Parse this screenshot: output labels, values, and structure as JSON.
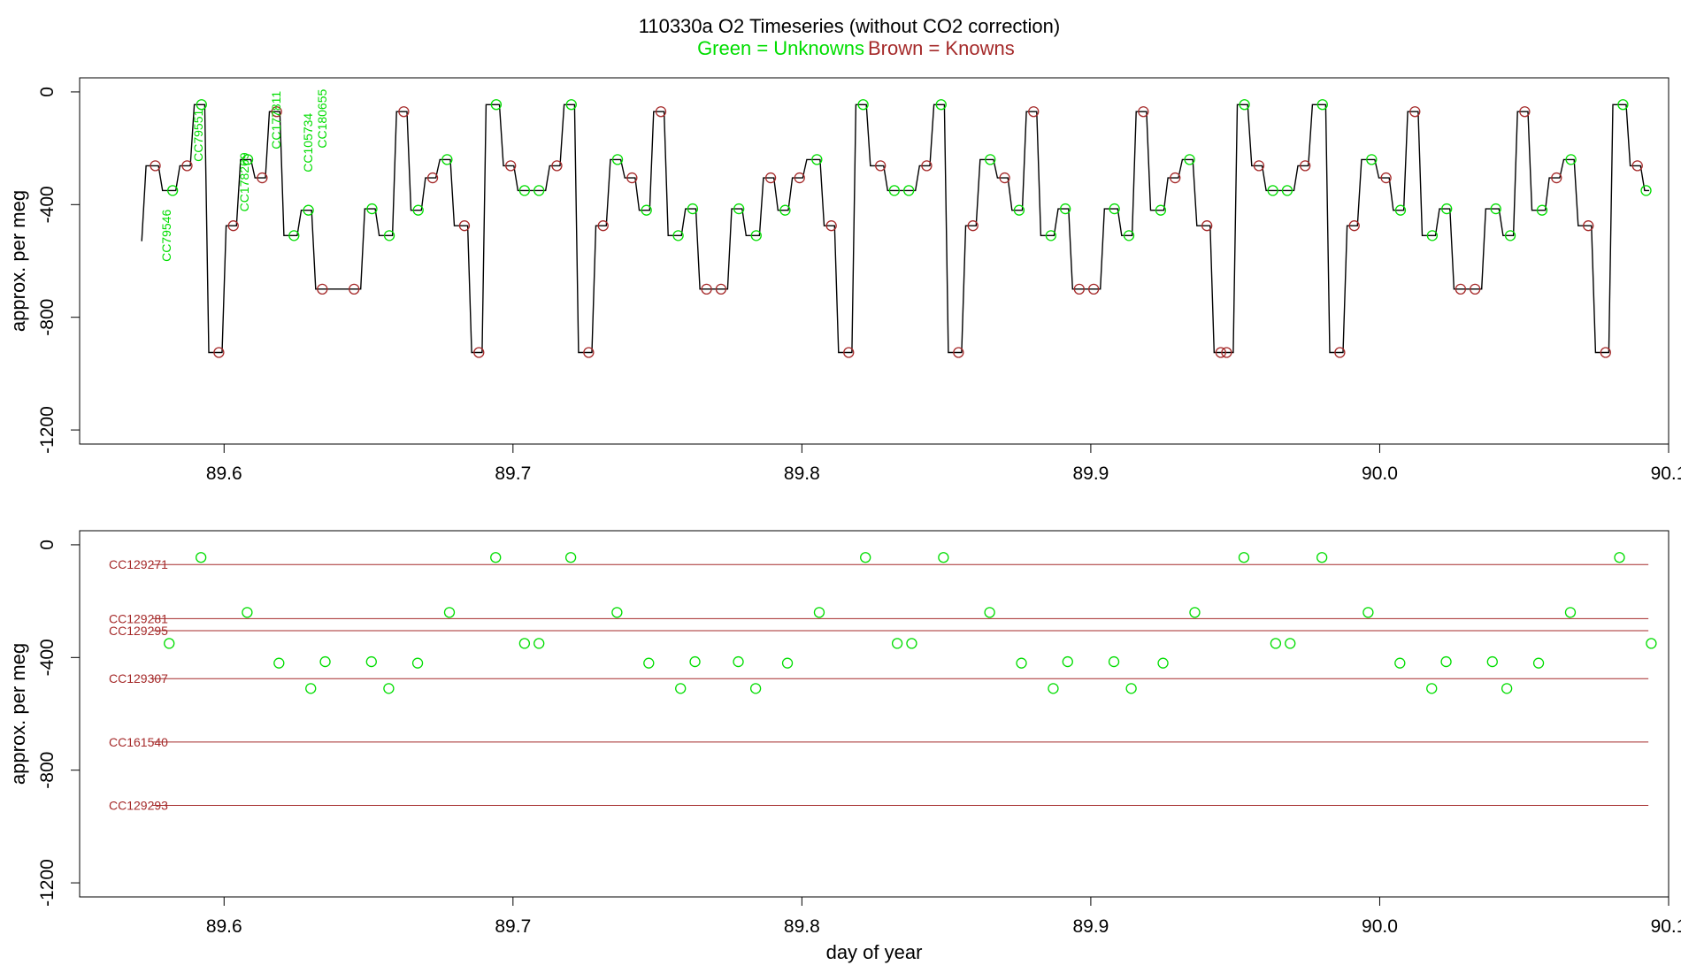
{
  "header": {
    "title": "110330a   O2 Timeseries (without CO2 correction)",
    "legend_green": "Green = Unknowns",
    "legend_brown": "Brown = Knowns"
  },
  "colors": {
    "unknown": "#00dd00",
    "known": "#a52a2a",
    "trace": "#000000"
  },
  "chart_data": [
    {
      "type": "line",
      "name": "O2 timeseries trace",
      "ylabel": "approx. per meg",
      "xlabel": "",
      "xlim": [
        89.55,
        90.1
      ],
      "ylim": [
        -1250,
        50
      ],
      "xticks": [
        89.6,
        89.7,
        89.8,
        89.9,
        90.0,
        90.1
      ],
      "xtick_labels": [
        "89.6",
        "89.7",
        "89.8",
        "89.9",
        "90.0",
        "90.1"
      ],
      "yticks": [
        0,
        -400,
        -800,
        -1200
      ],
      "ytick_labels": [
        "0",
        "-400",
        "-800",
        "-1200"
      ],
      "trace_start": [
        89.5715,
        -530
      ],
      "plateaus": [
        {
          "x": [
            89.573,
            89.578
          ],
          "y": -262,
          "kind": "known"
        },
        {
          "x": [
            89.578,
            89.584
          ],
          "y": -350,
          "kind": "unknown"
        },
        {
          "x": [
            89.584,
            89.589
          ],
          "y": -262,
          "kind": "known"
        },
        {
          "x": [
            89.589,
            89.594
          ],
          "y": -45,
          "kind": "unknown"
        },
        {
          "x": [
            89.594,
            89.6
          ],
          "y": -925,
          "kind": "known"
        },
        {
          "x": [
            89.6,
            89.605
          ],
          "y": -475,
          "kind": "known"
        },
        {
          "x": [
            89.605,
            89.61
          ],
          "y": -240,
          "kind": "unknown"
        },
        {
          "x": [
            89.61,
            89.615
          ],
          "y": -305,
          "kind": "known"
        },
        {
          "x": [
            89.615,
            89.62
          ],
          "y": -70,
          "kind": "known"
        },
        {
          "x": [
            89.62,
            89.626
          ],
          "y": -510,
          "kind": "unknown"
        },
        {
          "x": [
            89.626,
            89.631
          ],
          "y": -420,
          "kind": "unknown"
        },
        {
          "x": [
            89.631,
            89.648
          ],
          "y": -700,
          "kind": "known"
        },
        {
          "x": [
            89.648,
            89.653
          ],
          "y": -415,
          "kind": "unknown"
        },
        {
          "x": [
            89.653,
            89.659
          ],
          "y": -510,
          "kind": "unknown"
        },
        {
          "x": [
            89.659,
            89.664
          ],
          "y": -70,
          "kind": "known"
        },
        {
          "x": [
            89.664,
            89.669
          ],
          "y": -420,
          "kind": "unknown"
        },
        {
          "x": [
            89.669,
            89.674
          ],
          "y": -305,
          "kind": "known"
        },
        {
          "x": [
            89.674,
            89.679
          ],
          "y": -240,
          "kind": "unknown"
        },
        {
          "x": [
            89.679,
            89.685
          ],
          "y": -475,
          "kind": "known"
        },
        {
          "x": [
            89.685,
            89.69
          ],
          "y": -925,
          "kind": "known"
        },
        {
          "x": [
            89.69,
            89.696
          ],
          "y": -45,
          "kind": "unknown"
        },
        {
          "x": [
            89.696,
            89.701
          ],
          "y": -262,
          "kind": "known"
        },
        {
          "x": [
            89.701,
            89.712
          ],
          "y": -350,
          "kind": "unknown"
        },
        {
          "x": [
            89.712,
            89.717
          ],
          "y": -262,
          "kind": "known"
        },
        {
          "x": [
            89.717,
            89.722
          ],
          "y": -45,
          "kind": "unknown"
        },
        {
          "x": [
            89.722,
            89.728
          ],
          "y": -925,
          "kind": "known"
        },
        {
          "x": [
            89.728,
            89.733
          ],
          "y": -475,
          "kind": "known"
        },
        {
          "x": [
            89.733,
            89.738
          ],
          "y": -240,
          "kind": "unknown"
        },
        {
          "x": [
            89.738,
            89.743
          ],
          "y": -305,
          "kind": "known"
        },
        {
          "x": [
            89.743,
            89.748
          ],
          "y": -420,
          "kind": "unknown"
        },
        {
          "x": [
            89.748,
            89.753
          ],
          "y": -70,
          "kind": "known"
        },
        {
          "x": [
            89.753,
            89.759
          ],
          "y": -510,
          "kind": "unknown"
        },
        {
          "x": [
            89.759,
            89.764
          ],
          "y": -415,
          "kind": "unknown"
        },
        {
          "x": [
            89.764,
            89.775
          ],
          "y": -700,
          "kind": "known"
        },
        {
          "x": [
            89.775,
            89.78
          ],
          "y": -415,
          "kind": "unknown"
        },
        {
          "x": [
            89.78,
            89.786
          ],
          "y": -510,
          "kind": "unknown"
        },
        {
          "x": [
            89.786,
            89.791
          ],
          "y": -305,
          "kind": "known"
        },
        {
          "x": [
            89.791,
            89.796
          ],
          "y": -420,
          "kind": "unknown"
        },
        {
          "x": [
            89.796,
            89.801
          ],
          "y": -305,
          "kind": "known"
        },
        {
          "x": [
            89.801,
            89.807
          ],
          "y": -240,
          "kind": "unknown"
        },
        {
          "x": [
            89.807,
            89.812
          ],
          "y": -475,
          "kind": "known"
        },
        {
          "x": [
            89.812,
            89.818
          ],
          "y": -925,
          "kind": "known"
        },
        {
          "x": [
            89.818,
            89.823
          ],
          "y": -45,
          "kind": "unknown"
        },
        {
          "x": [
            89.823,
            89.829
          ],
          "y": -262,
          "kind": "known"
        },
        {
          "x": [
            89.829,
            89.84
          ],
          "y": -350,
          "kind": "unknown"
        },
        {
          "x": [
            89.84,
            89.845
          ],
          "y": -262,
          "kind": "known"
        },
        {
          "x": [
            89.845,
            89.85
          ],
          "y": -45,
          "kind": "unknown"
        },
        {
          "x": [
            89.85,
            89.856
          ],
          "y": -925,
          "kind": "known"
        },
        {
          "x": [
            89.856,
            89.861
          ],
          "y": -475,
          "kind": "known"
        },
        {
          "x": [
            89.861,
            89.867
          ],
          "y": -240,
          "kind": "unknown"
        },
        {
          "x": [
            89.867,
            89.872
          ],
          "y": -305,
          "kind": "known"
        },
        {
          "x": [
            89.872,
            89.877
          ],
          "y": -420,
          "kind": "unknown"
        },
        {
          "x": [
            89.877,
            89.882
          ],
          "y": -70,
          "kind": "known"
        },
        {
          "x": [
            89.882,
            89.888
          ],
          "y": -510,
          "kind": "unknown"
        },
        {
          "x": [
            89.888,
            89.893
          ],
          "y": -415,
          "kind": "unknown"
        },
        {
          "x": [
            89.893,
            89.904
          ],
          "y": -700,
          "kind": "known"
        },
        {
          "x": [
            89.904,
            89.91
          ],
          "y": -415,
          "kind": "unknown"
        },
        {
          "x": [
            89.91,
            89.915
          ],
          "y": -510,
          "kind": "unknown"
        },
        {
          "x": [
            89.915,
            89.92
          ],
          "y": -70,
          "kind": "known"
        },
        {
          "x": [
            89.92,
            89.926
          ],
          "y": -420,
          "kind": "unknown"
        },
        {
          "x": [
            89.926,
            89.931
          ],
          "y": -305,
          "kind": "known"
        },
        {
          "x": [
            89.931,
            89.936
          ],
          "y": -240,
          "kind": "unknown"
        },
        {
          "x": [
            89.936,
            89.942
          ],
          "y": -475,
          "kind": "known"
        },
        {
          "x": [
            89.942,
            89.95
          ],
          "y": -925,
          "kind": "known"
        },
        {
          "x": [
            89.95,
            89.955
          ],
          "y": -45,
          "kind": "unknown"
        },
        {
          "x": [
            89.955,
            89.96
          ],
          "y": -262,
          "kind": "known"
        },
        {
          "x": [
            89.96,
            89.971
          ],
          "y": -350,
          "kind": "unknown"
        },
        {
          "x": [
            89.971,
            89.976
          ],
          "y": -262,
          "kind": "known"
        },
        {
          "x": [
            89.976,
            89.982
          ],
          "y": -45,
          "kind": "unknown"
        },
        {
          "x": [
            89.982,
            89.988
          ],
          "y": -925,
          "kind": "known"
        },
        {
          "x": [
            89.988,
            89.993
          ],
          "y": -475,
          "kind": "known"
        },
        {
          "x": [
            89.993,
            89.999
          ],
          "y": -240,
          "kind": "unknown"
        },
        {
          "x": [
            89.999,
            90.004
          ],
          "y": -305,
          "kind": "known"
        },
        {
          "x": [
            90.004,
            90.009
          ],
          "y": -420,
          "kind": "unknown"
        },
        {
          "x": [
            90.009,
            90.014
          ],
          "y": -70,
          "kind": "known"
        },
        {
          "x": [
            90.014,
            90.02
          ],
          "y": -510,
          "kind": "unknown"
        },
        {
          "x": [
            90.02,
            90.025
          ],
          "y": -415,
          "kind": "unknown"
        },
        {
          "x": [
            90.025,
            90.036
          ],
          "y": -700,
          "kind": "known"
        },
        {
          "x": [
            90.036,
            90.042
          ],
          "y": -415,
          "kind": "unknown"
        },
        {
          "x": [
            90.042,
            90.047
          ],
          "y": -510,
          "kind": "unknown"
        },
        {
          "x": [
            90.047,
            90.052
          ],
          "y": -70,
          "kind": "known"
        },
        {
          "x": [
            90.052,
            90.058
          ],
          "y": -420,
          "kind": "unknown"
        },
        {
          "x": [
            90.058,
            90.063
          ],
          "y": -305,
          "kind": "known"
        },
        {
          "x": [
            90.063,
            90.068
          ],
          "y": -240,
          "kind": "unknown"
        },
        {
          "x": [
            90.068,
            90.074
          ],
          "y": -475,
          "kind": "known"
        },
        {
          "x": [
            90.074,
            90.08
          ],
          "y": -925,
          "kind": "known"
        },
        {
          "x": [
            90.08,
            90.086
          ],
          "y": -45,
          "kind": "unknown"
        },
        {
          "x": [
            90.086,
            90.091
          ],
          "y": -262,
          "kind": "known"
        },
        {
          "x": [
            90.091,
            90.094
          ],
          "y": -350,
          "kind": "unknown"
        }
      ],
      "annotations": [
        {
          "text": "CC79546",
          "x": 89.5815,
          "y": -510,
          "color": "unknown"
        },
        {
          "text": "CC79551",
          "x": 89.5925,
          "y": -155,
          "color": "unknown"
        },
        {
          "text": "CC178269",
          "x": 89.6085,
          "y": -320,
          "color": "unknown"
        },
        {
          "text": "CC177811",
          "x": 89.6195,
          "y": -100,
          "color": "unknown"
        },
        {
          "text": "CC105734",
          "x": 89.6305,
          "y": -180,
          "color": "unknown"
        },
        {
          "text": "CC180655",
          "x": 89.6355,
          "y": -95,
          "color": "unknown"
        }
      ]
    },
    {
      "type": "scatter",
      "name": "Unknown sample values with known reference lines",
      "ylabel": "approx. per meg",
      "xlabel": "day of year",
      "xlim": [
        89.55,
        90.1
      ],
      "ylim": [
        -1250,
        50
      ],
      "xticks": [
        89.6,
        89.7,
        89.8,
        89.9,
        90.0,
        90.1
      ],
      "xtick_labels": [
        "89.6",
        "89.7",
        "89.8",
        "89.9",
        "90.0",
        "90.1"
      ],
      "yticks": [
        0,
        -400,
        -800,
        -1200
      ],
      "ytick_labels": [
        "0",
        "-400",
        "-800",
        "-1200"
      ],
      "reference_lines": [
        {
          "name": "CC129271",
          "y": -70
        },
        {
          "name": "CC129281",
          "y": -262
        },
        {
          "name": "CC129295",
          "y": -305
        },
        {
          "name": "CC129307",
          "y": -475
        },
        {
          "name": "CC161540",
          "y": -700
        },
        {
          "name": "CC129293",
          "y": -925
        }
      ],
      "reference_x_range": [
        89.575,
        90.093
      ],
      "points": [
        {
          "x": 89.581,
          "y": -350
        },
        {
          "x": 89.592,
          "y": -45
        },
        {
          "x": 89.608,
          "y": -240
        },
        {
          "x": 89.619,
          "y": -420
        },
        {
          "x": 89.63,
          "y": -510
        },
        {
          "x": 89.635,
          "y": -415
        },
        {
          "x": 89.651,
          "y": -415
        },
        {
          "x": 89.657,
          "y": -510
        },
        {
          "x": 89.667,
          "y": -420
        },
        {
          "x": 89.678,
          "y": -240
        },
        {
          "x": 89.694,
          "y": -45
        },
        {
          "x": 89.704,
          "y": -350
        },
        {
          "x": 89.709,
          "y": -350
        },
        {
          "x": 89.72,
          "y": -45
        },
        {
          "x": 89.736,
          "y": -240
        },
        {
          "x": 89.747,
          "y": -420
        },
        {
          "x": 89.758,
          "y": -510
        },
        {
          "x": 89.763,
          "y": -415
        },
        {
          "x": 89.778,
          "y": -415
        },
        {
          "x": 89.784,
          "y": -510
        },
        {
          "x": 89.795,
          "y": -420
        },
        {
          "x": 89.806,
          "y": -240
        },
        {
          "x": 89.822,
          "y": -45
        },
        {
          "x": 89.833,
          "y": -350
        },
        {
          "x": 89.838,
          "y": -350
        },
        {
          "x": 89.849,
          "y": -45
        },
        {
          "x": 89.865,
          "y": -240
        },
        {
          "x": 89.876,
          "y": -420
        },
        {
          "x": 89.887,
          "y": -510
        },
        {
          "x": 89.892,
          "y": -415
        },
        {
          "x": 89.908,
          "y": -415
        },
        {
          "x": 89.914,
          "y": -510
        },
        {
          "x": 89.925,
          "y": -420
        },
        {
          "x": 89.936,
          "y": -240
        },
        {
          "x": 89.953,
          "y": -45
        },
        {
          "x": 89.964,
          "y": -350
        },
        {
          "x": 89.969,
          "y": -350
        },
        {
          "x": 89.98,
          "y": -45
        },
        {
          "x": 89.996,
          "y": -240
        },
        {
          "x": 90.007,
          "y": -420
        },
        {
          "x": 90.018,
          "y": -510
        },
        {
          "x": 90.023,
          "y": -415
        },
        {
          "x": 90.039,
          "y": -415
        },
        {
          "x": 90.044,
          "y": -510
        },
        {
          "x": 90.055,
          "y": -420
        },
        {
          "x": 90.066,
          "y": -240
        },
        {
          "x": 90.083,
          "y": -45
        },
        {
          "x": 90.094,
          "y": -350
        }
      ]
    }
  ]
}
